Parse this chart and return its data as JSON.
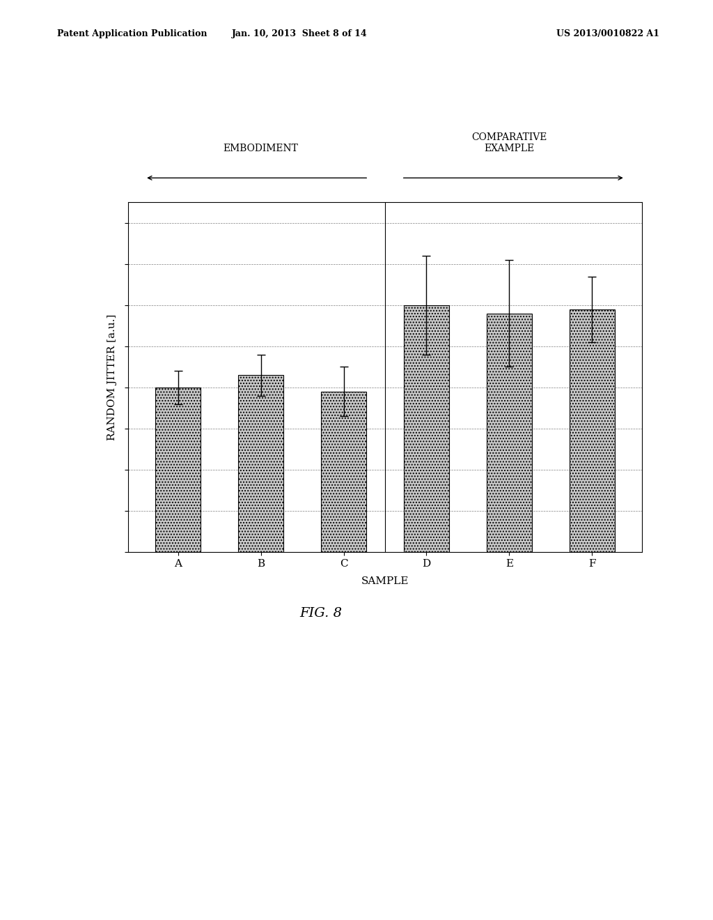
{
  "categories": [
    "A",
    "B",
    "C",
    "D",
    "E",
    "F"
  ],
  "values": [
    0.4,
    0.43,
    0.39,
    0.6,
    0.58,
    0.59
  ],
  "errors": [
    0.04,
    0.05,
    0.06,
    0.12,
    0.13,
    0.08
  ],
  "bar_color": "#c8c8c8",
  "bar_hatch": "....",
  "bar_edgecolor": "#000000",
  "ylabel": "RANDOM JITTER [a.u.]",
  "xlabel": "SAMPLE",
  "ylim": [
    0,
    0.85
  ],
  "yticks": [
    0.0,
    0.1,
    0.2,
    0.3,
    0.4,
    0.5,
    0.6,
    0.7,
    0.8
  ],
  "group1_label": "EMBODIMENT",
  "group2_label": "COMPARATIVE\nEXAMPLE",
  "header_left": "Patent Application Publication",
  "header_mid": "Jan. 10, 2013  Sheet 8 of 14",
  "header_right": "US 2013/0010822 A1",
  "fig_caption": "FIG. 8",
  "background_color": "#ffffff"
}
